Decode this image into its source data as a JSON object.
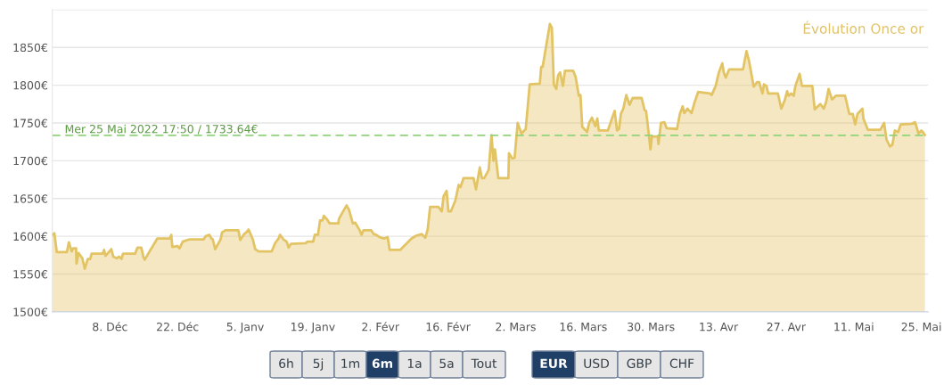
{
  "chart_data": {
    "type": "area",
    "title": "Évolution Once or",
    "x": [
      "2021-11-26T02:00",
      "2021-11-26T12:00",
      "2021-11-27T00:00",
      "2021-11-29T02:00",
      "2021-11-29T12:00",
      "2021-11-30T02:00",
      "2021-11-30T10:00",
      "2021-12-01T00:00",
      "2021-12-01T02:00",
      "2021-12-01T12:00",
      "2021-12-02T07:00",
      "2021-12-02T19:00",
      "2021-12-03T10:00",
      "2021-12-03T22:00",
      "2021-12-04T05:00",
      "2021-12-06T12:00",
      "2021-12-06T19:00",
      "2021-12-07T02:00",
      "2021-12-08T07:00",
      "2021-12-08T17:00",
      "2021-12-09T10:00",
      "2021-12-09T22:00",
      "2021-12-10T10:00",
      "2021-12-10T17:00",
      "2021-12-13T05:00",
      "2021-12-13T17:00",
      "2021-12-14T12:00",
      "2021-12-14T22:00",
      "2021-12-15T05:00",
      "2021-12-16T05:00",
      "2021-12-16T19:00",
      "2021-12-17T19:00",
      "2021-12-20T10:00",
      "2021-12-20T17:00",
      "2021-12-20T22:00",
      "2021-12-22T00:00",
      "2021-12-22T10:00",
      "2021-12-23T02:00",
      "2021-12-24T12:00",
      "2021-12-27T10:00",
      "2021-12-27T19:00",
      "2021-12-28T14:00",
      "2021-12-29T00:00",
      "2021-12-29T07:00",
      "2021-12-29T19:00",
      "2021-12-30T12:00",
      "2021-12-30T22:00",
      "2021-12-31T05:00",
      "2021-12-31T22:00",
      "2022-01-03T14:00",
      "2022-01-04T00:00",
      "2022-01-04T19:00",
      "2022-01-05T05:00",
      "2022-01-05T17:00",
      "2022-01-06T14:00",
      "2022-01-07T02:00",
      "2022-01-07T19:00",
      "2022-01-10T12:00",
      "2022-01-11T05:00",
      "2022-01-11T22:00",
      "2022-01-12T05:00",
      "2022-01-12T22:00",
      "2022-01-13T14:00",
      "2022-01-14T00:00",
      "2022-01-14T12:00",
      "2022-01-17T12:00",
      "2022-01-17T22:00",
      "2022-01-19T02:00",
      "2022-01-19T10:00",
      "2022-01-20T02:00",
      "2022-01-20T12:00",
      "2022-01-21T00:00",
      "2022-01-21T07:00",
      "2022-01-22T00:00",
      "2022-01-22T12:00",
      "2022-01-24T07:00",
      "2022-01-24T10:00",
      "2022-01-25T07:00",
      "2022-01-26T00:00",
      "2022-01-26T12:00",
      "2022-01-27T07:00",
      "2022-01-27T19:00",
      "2022-01-28T17:00",
      "2022-01-29T02:00",
      "2022-01-29T12:00",
      "2022-01-31T02:00",
      "2022-01-31T14:00",
      "2022-02-01T02:00",
      "2022-02-01T19:00",
      "2022-02-02T17:00",
      "2022-02-03T12:00",
      "2022-02-03T22:00",
      "2022-02-06T02:00",
      "2022-02-08T10:00",
      "2022-02-09T12:00",
      "2022-02-10T14:00",
      "2022-02-11T07:00",
      "2022-02-11T19:00",
      "2022-02-12T07:00",
      "2022-02-14T00:00",
      "2022-02-14T17:00",
      "2022-02-15T02:00",
      "2022-02-15T17:00",
      "2022-02-16T02:00",
      "2022-02-16T14:00",
      "2022-02-17T12:00",
      "2022-02-18T05:00",
      "2022-02-18T14:00",
      "2022-02-19T05:00",
      "2022-02-21T07:00",
      "2022-02-21T19:00",
      "2022-02-22T14:00",
      "2022-02-23T00:00",
      "2022-02-23T12:00",
      "2022-02-24T10:00",
      "2022-02-25T00:00",
      "2022-02-25T10:00",
      "2022-02-25T17:00",
      "2022-02-26T10:00",
      "2022-02-28T12:00",
      "2022-02-28T15:00",
      "2022-03-01T07:00",
      "2022-03-01T19:00",
      "2022-03-02T10:00",
      "2022-03-03T05:00",
      "2022-03-04T02:00",
      "2022-03-04T22:00",
      "2022-03-07T00:00",
      "2022-03-07T07:00",
      "2022-03-07T14:00",
      "2022-03-09T02:00",
      "2022-03-09T12:00",
      "2022-03-09T22:00",
      "2022-03-10T10:00",
      "2022-03-10T19:00",
      "2022-03-11T05:00",
      "2022-03-11T19:00",
      "2022-03-12T05:00",
      "2022-03-13T22:00",
      "2022-03-14T10:00",
      "2022-03-15T02:00",
      "2022-03-15T10:00",
      "2022-03-15T19:00",
      "2022-03-16T19:00",
      "2022-03-17T05:00",
      "2022-03-17T19:00",
      "2022-03-18T12:00",
      "2022-03-18T22:00",
      "2022-03-19T05:00",
      "2022-03-21T02:00",
      "2022-03-22T12:00",
      "2022-03-23T00:00",
      "2022-03-23T10:00",
      "2022-03-23T19:00",
      "2022-03-24T07:00",
      "2022-03-24T22:00",
      "2022-03-25T14:00",
      "2022-03-26T05:00",
      "2022-03-28T02:00",
      "2022-03-28T17:00",
      "2022-03-29T00:00",
      "2022-03-29T07:00",
      "2022-03-29T22:00",
      "2022-03-30T05:00",
      "2022-03-31T10:00",
      "2022-03-31T14:00",
      "2022-04-01T02:00",
      "2022-04-01T19:00",
      "2022-04-02T07:00",
      "2022-04-04T10:00",
      "2022-04-05T00:00",
      "2022-04-05T14:00",
      "2022-04-05T22:00",
      "2022-04-06T14:00",
      "2022-04-07T10:00",
      "2022-04-08T02:00",
      "2022-04-08T19:00",
      "2022-04-11T05:00",
      "2022-04-11T14:00",
      "2022-04-12T10:00",
      "2022-04-13T02:00",
      "2022-04-13T19:00",
      "2022-04-14T02:00",
      "2022-04-14T12:00",
      "2022-04-15T05:00",
      "2022-04-18T02:00",
      "2022-04-18T19:00",
      "2022-04-19T07:00",
      "2022-04-20T07:00",
      "2022-04-21T00:00",
      "2022-04-21T10:00",
      "2022-04-22T02:00",
      "2022-04-22T10:00",
      "2022-04-22T22:00",
      "2022-04-23T07:00",
      "2022-04-25T07:00",
      "2022-04-26T00:00",
      "2022-04-26T17:00",
      "2022-04-27T05:00",
      "2022-04-27T12:00",
      "2022-04-28T02:00",
      "2022-04-28T14:00",
      "2022-04-28T22:00",
      "2022-04-29T19:00",
      "2022-04-30T07:00",
      "2022-05-02T10:00",
      "2022-05-02T22:00",
      "2022-05-03T14:00",
      "2022-05-04T02:00",
      "2022-05-04T19:00",
      "2022-05-05T07:00",
      "2022-05-05T19:00",
      "2022-05-06T12:00",
      "2022-05-07T07:00",
      "2022-05-09T05:00",
      "2022-05-10T02:00",
      "2022-05-10T19:00",
      "2022-05-11T07:00",
      "2022-05-11T19:00",
      "2022-05-12T19:00",
      "2022-05-13T00:00",
      "2022-05-13T22:00",
      "2022-05-16T12:00",
      "2022-05-17T07:00",
      "2022-05-17T19:00",
      "2022-05-18T12:00",
      "2022-05-19T00:00",
      "2022-05-19T12:00",
      "2022-05-20T05:00",
      "2022-05-20T17:00",
      "2022-05-23T00:00",
      "2022-05-23T17:00",
      "2022-05-24T10:00",
      "2022-05-25T00:00",
      "2022-05-25T07:00",
      "2022-05-25T17:50"
    ],
    "series": [
      {
        "color": "#e3c465",
        "values": [
          1602,
          1604,
          1579,
          1579,
          1592,
          1580,
          1584,
          1584,
          1564,
          1578,
          1571,
          1557,
          1570,
          1570,
          1577,
          1577,
          1582,
          1574,
          1583,
          1573,
          1571,
          1573,
          1570,
          1577,
          1577,
          1585,
          1585,
          1573,
          1569,
          1580,
          1586,
          1597,
          1597,
          1602,
          1586,
          1587,
          1584,
          1593,
          1596,
          1596,
          1600,
          1602,
          1597,
          1596,
          1583,
          1591,
          1596,
          1605,
          1608,
          1608,
          1595,
          1603,
          1605,
          1609,
          1596,
          1583,
          1580,
          1580,
          1591,
          1597,
          1602,
          1596,
          1593,
          1585,
          1590,
          1591,
          1593,
          1593,
          1602,
          1602,
          1621,
          1621,
          1627,
          1622,
          1617,
          1617,
          1623,
          1633,
          1641,
          1635,
          1617,
          1618,
          1608,
          1602,
          1608,
          1608,
          1603,
          1602,
          1599,
          1597,
          1599,
          1582,
          1582,
          1597,
          1601,
          1603,
          1598,
          1609,
          1639,
          1639,
          1633,
          1653,
          1660,
          1633,
          1633,
          1647,
          1668,
          1665,
          1677,
          1677,
          1662,
          1691,
          1677,
          1677,
          1688,
          1734,
          1700,
          1715,
          1677,
          1677,
          1710,
          1703,
          1704,
          1750,
          1736,
          1742,
          1801,
          1802,
          1824,
          1824,
          1881,
          1876,
          1801,
          1795,
          1813,
          1817,
          1799,
          1819,
          1819,
          1811,
          1786,
          1787,
          1745,
          1738,
          1750,
          1757,
          1746,
          1756,
          1740,
          1740,
          1766,
          1740,
          1742,
          1762,
          1769,
          1787,
          1774,
          1783,
          1783,
          1767,
          1766,
          1751,
          1715,
          1732,
          1732,
          1722,
          1750,
          1751,
          1743,
          1742,
          1762,
          1772,
          1763,
          1769,
          1763,
          1778,
          1791,
          1789,
          1787,
          1799,
          1817,
          1829,
          1817,
          1810,
          1821,
          1821,
          1845,
          1833,
          1798,
          1804,
          1804,
          1789,
          1801,
          1799,
          1789,
          1789,
          1769,
          1780,
          1792,
          1786,
          1789,
          1786,
          1799,
          1815,
          1799,
          1799,
          1768,
          1772,
          1775,
          1769,
          1778,
          1795,
          1781,
          1786,
          1786,
          1762,
          1762,
          1748,
          1762,
          1769,
          1756,
          1741,
          1741,
          1750,
          1728,
          1719,
          1721,
          1740,
          1738,
          1748,
          1749,
          1751,
          1736,
          1740,
          1738,
          1734
        ]
      }
    ],
    "xlim": [
      "2021-11-26T02:00",
      "2022-05-26T10:00"
    ],
    "xticks": [
      {
        "value": "2021-12-08",
        "label": "8. Déc"
      },
      {
        "value": "2021-12-22",
        "label": "22. Déc"
      },
      {
        "value": "2022-01-05",
        "label": "5. Janv"
      },
      {
        "value": "2022-01-19",
        "label": "19. Janv"
      },
      {
        "value": "2022-02-02",
        "label": "2. Févr"
      },
      {
        "value": "2022-02-16",
        "label": "16. Févr"
      },
      {
        "value": "2022-03-02",
        "label": "2. Mars"
      },
      {
        "value": "2022-03-16",
        "label": "16. Mars"
      },
      {
        "value": "2022-03-30",
        "label": "30. Mars"
      },
      {
        "value": "2022-04-13",
        "label": "13. Avr"
      },
      {
        "value": "2022-04-27",
        "label": "27. Avr"
      },
      {
        "value": "2022-05-11",
        "label": "11. Mai"
      },
      {
        "value": "2022-05-25",
        "label": "25. Mai"
      }
    ],
    "ylim": [
      1500,
      1900
    ],
    "yticks": [
      {
        "value": 1500,
        "label": "1500€"
      },
      {
        "value": 1550,
        "label": "1550€"
      },
      {
        "value": 1600,
        "label": "1600€"
      },
      {
        "value": 1650,
        "label": "1650€"
      },
      {
        "value": 1700,
        "label": "1700€"
      },
      {
        "value": 1750,
        "label": "1750€"
      },
      {
        "value": 1800,
        "label": "1800€"
      },
      {
        "value": 1850,
        "label": "1850€"
      },
      {
        "value": 1900,
        "label": null
      }
    ],
    "grid": "y",
    "legend": false,
    "ref_lines": [
      {
        "axis": "y",
        "value": 1733.64,
        "label": "Mer 25 Mai 2022 17:50 / 1733.64€",
        "color": "#8fd47a",
        "line_style": "dashed"
      }
    ],
    "annotations": [
      "6h",
      "5j",
      "1m",
      "6m",
      "1a",
      "5a",
      "Tout",
      "EUR",
      "USD",
      "GBP",
      "CHF"
    ]
  }
}
